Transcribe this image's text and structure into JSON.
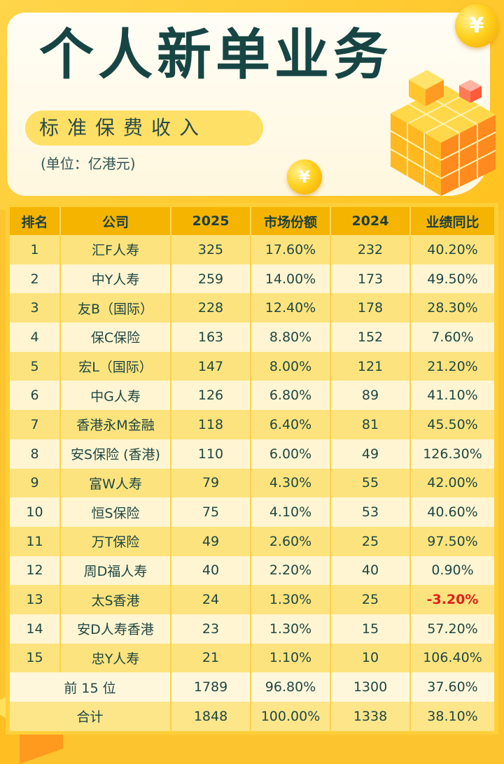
{
  "header": {
    "title": "个人新单业务",
    "subtitle": "标准保费收入",
    "unit": "(单位：亿港元)"
  },
  "decor": {
    "coin_symbol": "¥",
    "colors": {
      "accent": "#fcc52f",
      "title": "#164544",
      "negative": "#e0201c"
    }
  },
  "table": {
    "headers": [
      "排名",
      "公司",
      "2025",
      "市场份额",
      "2024",
      "业绩同比"
    ],
    "rows": [
      {
        "rank": "1",
        "company": "汇F人寿",
        "v2025": "325",
        "share": "17.60%",
        "v2024": "232",
        "yoy": "40.20%"
      },
      {
        "rank": "2",
        "company": "中Y人寿",
        "v2025": "259",
        "share": "14.00%",
        "v2024": "173",
        "yoy": "49.50%"
      },
      {
        "rank": "3",
        "company": "友B（国际）",
        "v2025": "228",
        "share": "12.40%",
        "v2024": "178",
        "yoy": "28.30%"
      },
      {
        "rank": "4",
        "company": "保C保险",
        "v2025": "163",
        "share": "8.80%",
        "v2024": "152",
        "yoy": "7.60%"
      },
      {
        "rank": "5",
        "company": "宏L（国际）",
        "v2025": "147",
        "share": "8.00%",
        "v2024": "121",
        "yoy": "21.20%"
      },
      {
        "rank": "6",
        "company": "中G人寿",
        "v2025": "126",
        "share": "6.80%",
        "v2024": "89",
        "yoy": "41.10%"
      },
      {
        "rank": "7",
        "company": "香港永M金融",
        "v2025": "118",
        "share": "6.40%",
        "v2024": "81",
        "yoy": "45.50%"
      },
      {
        "rank": "8",
        "company": "安S保险 (香港)",
        "v2025": "110",
        "share": "6.00%",
        "v2024": "49",
        "yoy": "126.30%"
      },
      {
        "rank": "9",
        "company": "富W人寿",
        "v2025": "79",
        "share": "4.30%",
        "v2024": "55",
        "yoy": "42.00%"
      },
      {
        "rank": "10",
        "company": "恒S保险",
        "v2025": "75",
        "share": "4.10%",
        "v2024": "53",
        "yoy": "40.60%"
      },
      {
        "rank": "11",
        "company": "万T保险",
        "v2025": "49",
        "share": "2.60%",
        "v2024": "25",
        "yoy": "97.50%"
      },
      {
        "rank": "12",
        "company": "周D福人寿",
        "v2025": "40",
        "share": "2.20%",
        "v2024": "40",
        "yoy": "0.90%"
      },
      {
        "rank": "13",
        "company": "太S香港",
        "v2025": "24",
        "share": "1.30%",
        "v2024": "25",
        "yoy": "-3.20%"
      },
      {
        "rank": "14",
        "company": "安D人寿香港",
        "v2025": "23",
        "share": "1.30%",
        "v2024": "15",
        "yoy": "57.20%"
      },
      {
        "rank": "15",
        "company": "忠Y人寿",
        "v2025": "21",
        "share": "1.10%",
        "v2024": "10",
        "yoy": "106.40%"
      }
    ],
    "summary": [
      {
        "label": "前 15 位",
        "v2025": "1789",
        "share": "96.80%",
        "v2024": "1300",
        "yoy": "37.60%"
      },
      {
        "label": "合计",
        "v2025": "1848",
        "share": "100.00%",
        "v2024": "1338",
        "yoy": "38.10%"
      }
    ]
  }
}
